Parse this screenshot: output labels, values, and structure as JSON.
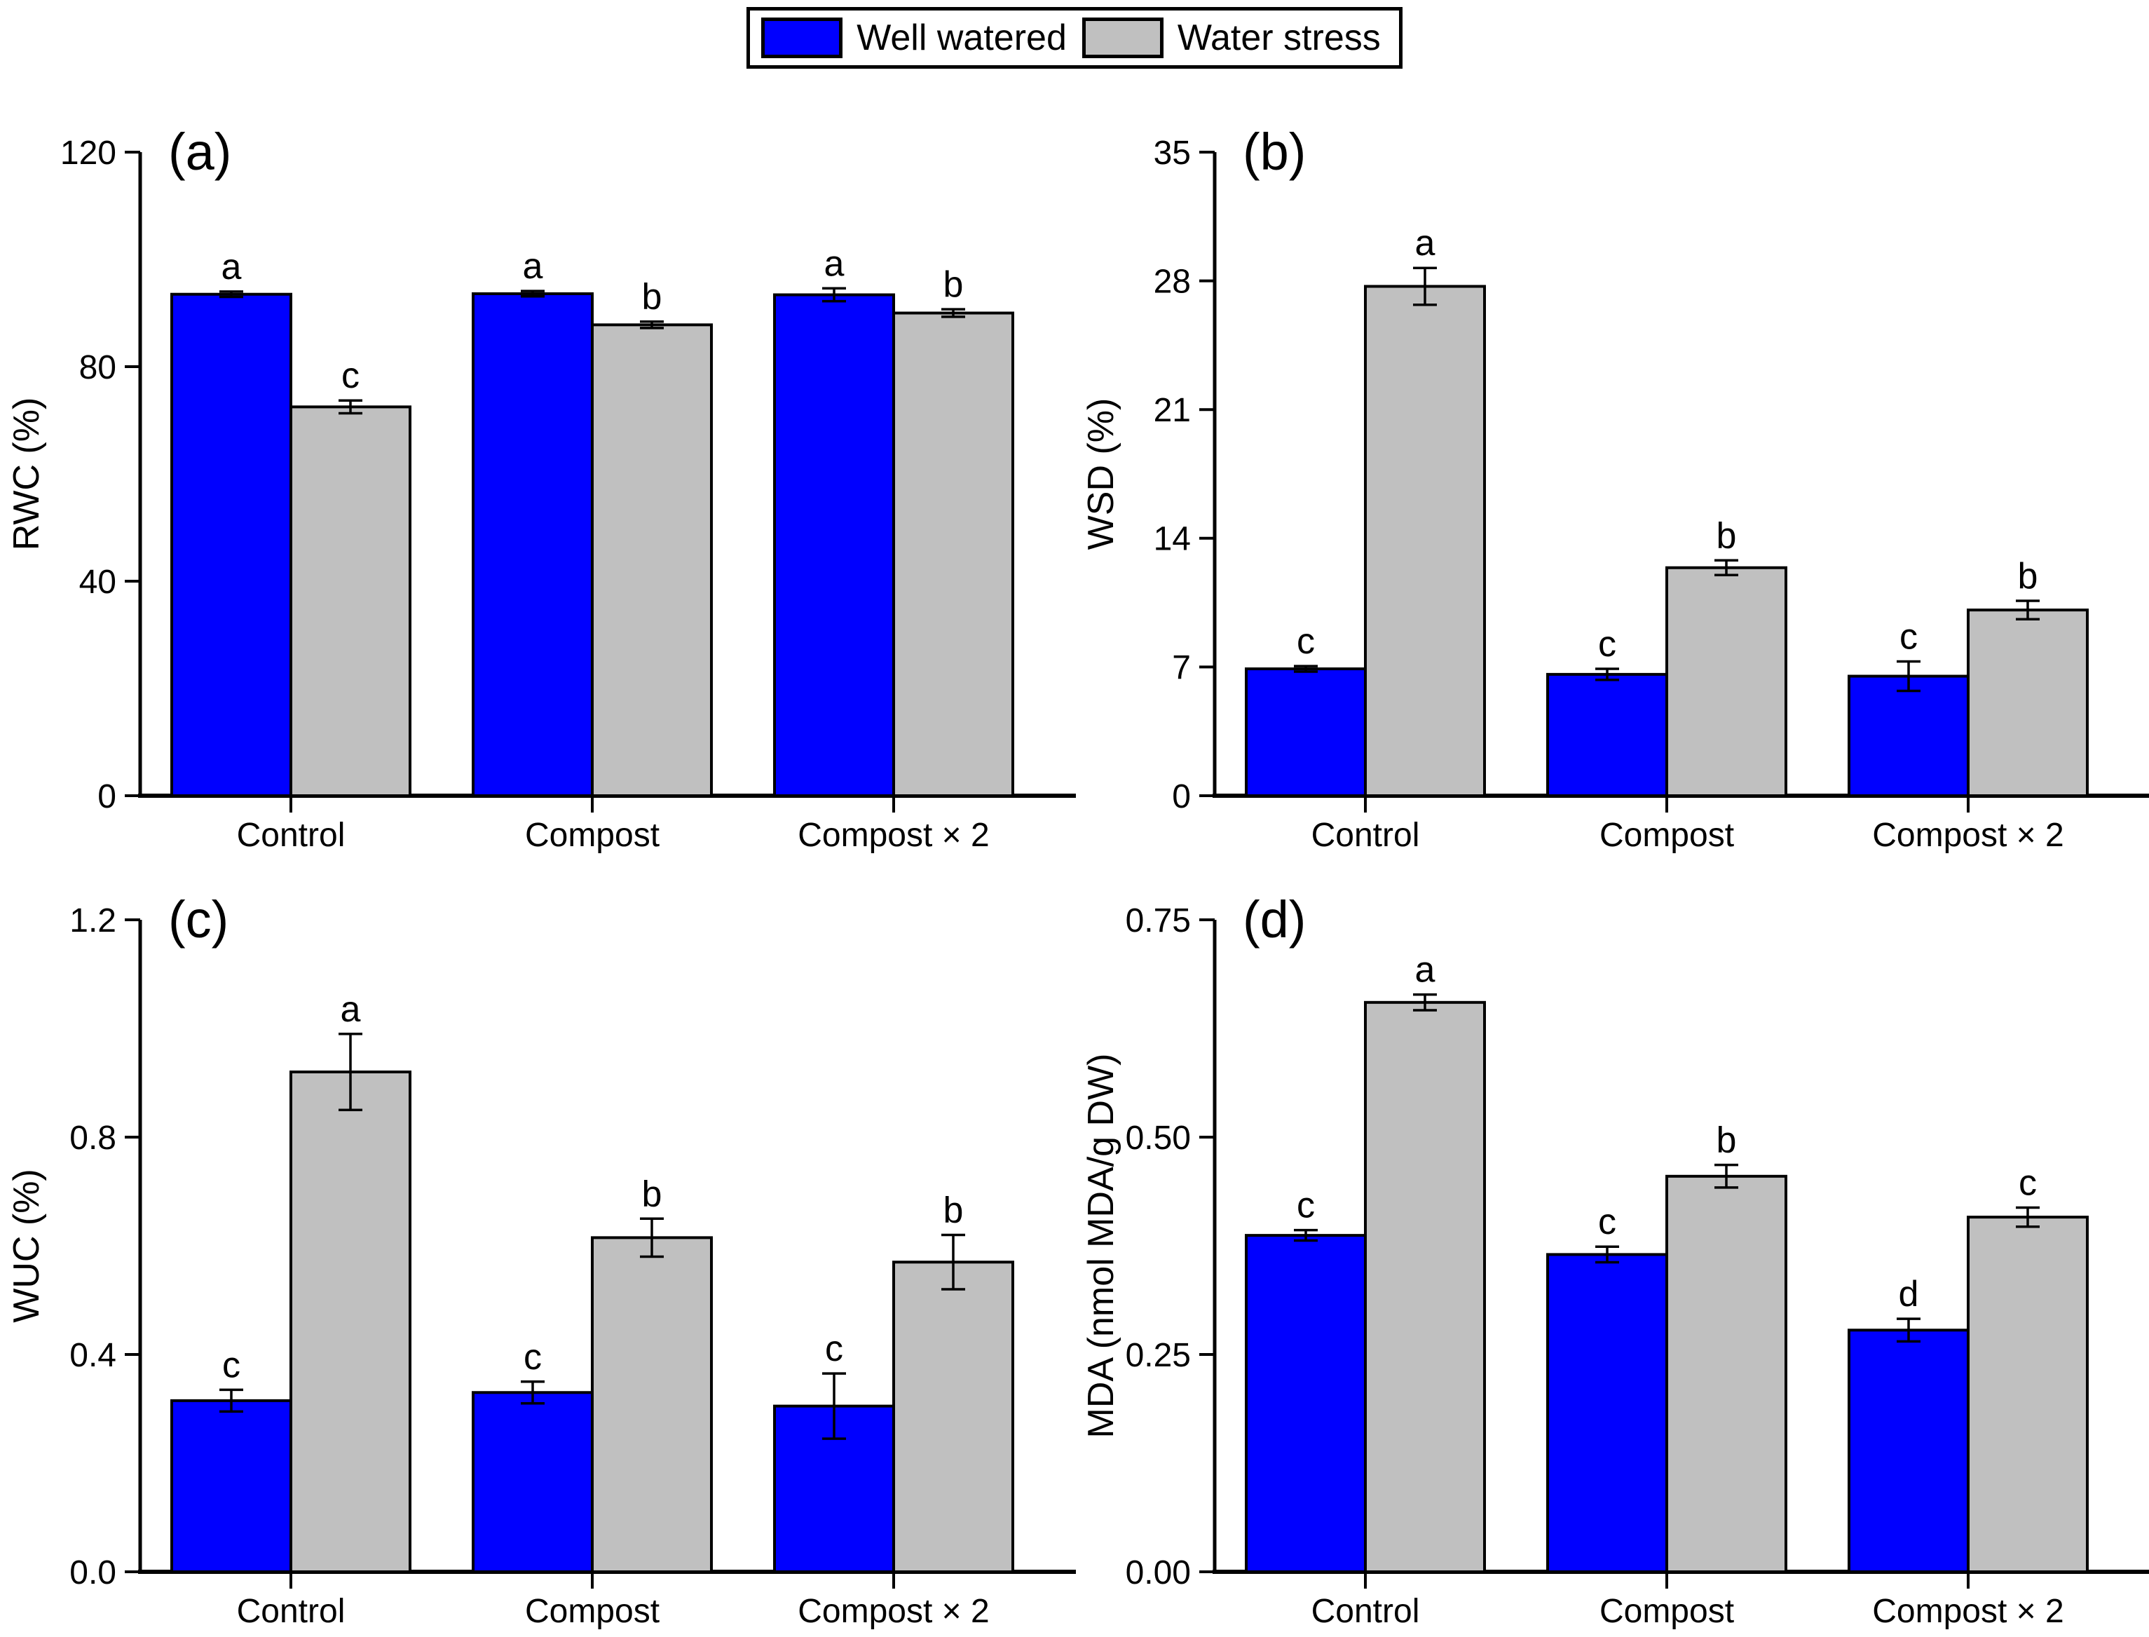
{
  "legend": {
    "items": [
      {
        "label": "Well watered",
        "color": "#0000FF"
      },
      {
        "label": "Water stress",
        "color": "#C0C0C0"
      }
    ]
  },
  "colors": {
    "well_watered": "#0000FF",
    "water_stress": "#C0C0C0",
    "axis": "#000000",
    "background": "#FFFFFF"
  },
  "chart_data": [
    {
      "panel_label": "(a)",
      "type": "bar",
      "ylabel": "RWC (%)",
      "xlabel": "",
      "ylim": [
        0,
        120
      ],
      "yticks": [
        0,
        40,
        80,
        120
      ],
      "ytick_labels": [
        "0",
        "40",
        "80",
        "120"
      ],
      "grid": false,
      "categories": [
        "Control",
        "Compost",
        "Compost × 2"
      ],
      "series": [
        {
          "name": "Well watered",
          "color": "#0000FF",
          "values": [
            93.5,
            93.6,
            93.4
          ],
          "errors": [
            0.5,
            0.5,
            1.2
          ],
          "letters": [
            "a",
            "a",
            "a"
          ]
        },
        {
          "name": "Water stress",
          "color": "#C0C0C0",
          "values": [
            72.5,
            87.8,
            90.0
          ],
          "errors": [
            1.2,
            0.6,
            0.7
          ],
          "letters": [
            "c",
            "b",
            "b"
          ]
        }
      ]
    },
    {
      "panel_label": "(b)",
      "type": "bar",
      "ylabel": "WSD (%)",
      "xlabel": "",
      "ylim": [
        0,
        35
      ],
      "yticks": [
        0,
        7,
        14,
        21,
        28,
        35
      ],
      "ytick_labels": [
        "0",
        "7",
        "14",
        "21",
        "28",
        "35"
      ],
      "grid": false,
      "categories": [
        "Control",
        "Compost",
        "Compost × 2"
      ],
      "series": [
        {
          "name": "Well watered",
          "color": "#0000FF",
          "values": [
            6.9,
            6.6,
            6.5
          ],
          "errors": [
            0.15,
            0.3,
            0.8
          ],
          "letters": [
            "c",
            "c",
            "c"
          ]
        },
        {
          "name": "Water stress",
          "color": "#C0C0C0",
          "values": [
            27.7,
            12.4,
            10.1
          ],
          "errors": [
            1.0,
            0.4,
            0.5
          ],
          "letters": [
            "a",
            "b",
            "b"
          ]
        }
      ]
    },
    {
      "panel_label": "(c)",
      "type": "bar",
      "ylabel": "WUC (%)",
      "xlabel": "",
      "ylim": [
        0,
        1.2
      ],
      "yticks": [
        0,
        0.4,
        0.8,
        1.2
      ],
      "ytick_labels": [
        "0.0",
        "0.4",
        "0.8",
        "1.2"
      ],
      "grid": false,
      "categories": [
        "Control",
        "Compost",
        "Compost × 2"
      ],
      "series": [
        {
          "name": "Well watered",
          "color": "#0000FF",
          "values": [
            0.315,
            0.33,
            0.305
          ],
          "errors": [
            0.02,
            0.02,
            0.06
          ],
          "letters": [
            "c",
            "c",
            "c"
          ]
        },
        {
          "name": "Water stress",
          "color": "#C0C0C0",
          "values": [
            0.92,
            0.615,
            0.57
          ],
          "errors": [
            0.07,
            0.035,
            0.05
          ],
          "letters": [
            "a",
            "b",
            "b"
          ]
        }
      ]
    },
    {
      "panel_label": "(d)",
      "type": "bar",
      "ylabel": "MDA (nmol MDA/g DW)",
      "xlabel": "",
      "ylim": [
        0,
        0.75
      ],
      "yticks": [
        0,
        0.25,
        0.5,
        0.75
      ],
      "ytick_labels": [
        "0.00",
        "0.25",
        "0.50",
        "0.75"
      ],
      "grid": false,
      "categories": [
        "Control",
        "Compost",
        "Compost × 2"
      ],
      "series": [
        {
          "name": "Well watered",
          "color": "#0000FF",
          "values": [
            0.387,
            0.365,
            0.278
          ],
          "errors": [
            0.006,
            0.009,
            0.013
          ],
          "letters": [
            "c",
            "c",
            "d"
          ]
        },
        {
          "name": "Water stress",
          "color": "#C0C0C0",
          "values": [
            0.655,
            0.455,
            0.408
          ],
          "errors": [
            0.009,
            0.013,
            0.011
          ],
          "letters": [
            "a",
            "b",
            "c"
          ]
        }
      ]
    }
  ]
}
